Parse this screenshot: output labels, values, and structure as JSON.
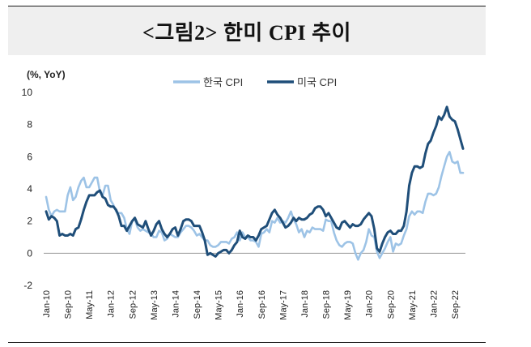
{
  "title": "<그림2> 한미 CPI 추이",
  "chart_data": {
    "type": "line",
    "ylabel": "(%, YoY)",
    "ylim": [
      -2,
      10
    ],
    "yticks": [
      -2,
      0,
      2,
      4,
      6,
      8,
      10
    ],
    "xtick_labels": [
      "Jan-10",
      "Sep-10",
      "May-11",
      "Jan-12",
      "Sep-12",
      "May-13",
      "Jan-14",
      "Sep-14",
      "May-15",
      "Jan-16",
      "Sep-16",
      "May-17",
      "Jan-18",
      "Sep-18",
      "May-19",
      "Jan-20",
      "Sep-20",
      "May-21",
      "Jan-22",
      "Sep-22"
    ],
    "legend_position": "top-center",
    "grid": false,
    "x_start": "2010-01",
    "x_end": "2022-12",
    "series": [
      {
        "name": "한국 CPI",
        "color": "#9dc3e6",
        "values": [
          3.5,
          2.7,
          2.3,
          2.6,
          2.7,
          2.6,
          2.6,
          2.6,
          3.6,
          4.1,
          3.3,
          3.5,
          4.1,
          4.5,
          4.7,
          4.1,
          4.1,
          4.4,
          4.7,
          4.7,
          3.8,
          3.6,
          4.2,
          4.2,
          3.3,
          3.0,
          2.6,
          2.5,
          2.5,
          2.2,
          1.5,
          1.2,
          2.0,
          2.1,
          1.6,
          1.4,
          1.5,
          1.4,
          1.3,
          1.2,
          1.0,
          1.0,
          1.4,
          1.3,
          0.8,
          0.9,
          1.2,
          1.1,
          1.0,
          1.0,
          1.3,
          1.5,
          1.7,
          1.7,
          1.6,
          1.4,
          1.1,
          1.2,
          1.0,
          0.8,
          0.8,
          0.5,
          0.4,
          0.4,
          0.5,
          0.7,
          0.7,
          0.7,
          0.6,
          0.9,
          1.0,
          1.3,
          0.8,
          1.3,
          1.0,
          1.0,
          0.8,
          0.8,
          0.7,
          0.4,
          1.2,
          1.3,
          1.5,
          1.3,
          2.0,
          1.9,
          2.2,
          1.9,
          2.0,
          1.9,
          2.2,
          2.6,
          2.1,
          1.8,
          1.3,
          1.5,
          1.0,
          1.4,
          1.3,
          1.6,
          1.5,
          1.5,
          1.5,
          1.4,
          2.1,
          2.0,
          2.0,
          1.3,
          0.8,
          0.5,
          0.4,
          0.6,
          0.7,
          0.7,
          0.6,
          0.0,
          -0.4,
          0.0,
          0.2,
          0.7,
          1.5,
          1.1,
          1.0,
          0.1,
          -0.3,
          0.0,
          0.3,
          0.7,
          1.0,
          0.1,
          0.6,
          0.5,
          0.6,
          1.1,
          1.5,
          2.3,
          2.6,
          2.4,
          2.6,
          2.6,
          2.5,
          3.2,
          3.7,
          3.7,
          3.6,
          3.7,
          4.1,
          4.8,
          5.4,
          6.0,
          6.3,
          5.7,
          5.6,
          5.7,
          5.0,
          5.0
        ]
      },
      {
        "name": "미국 CPI",
        "color": "#1f4e79",
        "values": [
          2.6,
          2.1,
          2.3,
          2.2,
          2.0,
          1.1,
          1.2,
          1.1,
          1.1,
          1.2,
          1.1,
          1.5,
          1.6,
          2.1,
          2.7,
          3.2,
          3.6,
          3.6,
          3.6,
          3.8,
          3.9,
          3.5,
          3.4,
          3.0,
          2.9,
          2.9,
          2.7,
          2.3,
          1.7,
          1.7,
          1.4,
          1.7,
          2.0,
          2.2,
          1.8,
          1.7,
          1.6,
          2.0,
          1.5,
          1.1,
          1.4,
          1.8,
          2.0,
          1.5,
          1.2,
          1.0,
          1.2,
          1.5,
          1.6,
          1.1,
          1.5,
          2.0,
          2.1,
          2.1,
          2.0,
          1.7,
          1.7,
          1.7,
          1.3,
          0.8,
          -0.1,
          0.0,
          -0.1,
          -0.2,
          0.0,
          0.1,
          0.2,
          0.2,
          0.0,
          0.2,
          0.5,
          0.7,
          1.4,
          1.0,
          0.9,
          1.1,
          1.0,
          1.0,
          0.8,
          1.1,
          1.5,
          1.6,
          1.7,
          2.1,
          2.5,
          2.7,
          2.4,
          2.2,
          1.9,
          1.6,
          1.7,
          1.9,
          2.2,
          2.0,
          2.2,
          2.1,
          2.1,
          2.2,
          2.4,
          2.5,
          2.8,
          2.9,
          2.9,
          2.7,
          2.3,
          2.5,
          2.2,
          1.9,
          1.6,
          1.5,
          1.9,
          2.0,
          1.8,
          1.6,
          1.8,
          1.7,
          1.7,
          1.8,
          2.1,
          2.3,
          2.5,
          2.3,
          1.5,
          0.3,
          0.1,
          0.6,
          1.0,
          1.3,
          1.4,
          1.2,
          1.2,
          1.4,
          1.4,
          1.7,
          2.6,
          4.2,
          5.0,
          5.4,
          5.4,
          5.3,
          5.4,
          6.2,
          6.8,
          7.0,
          7.5,
          7.9,
          8.5,
          8.3,
          8.6,
          9.1,
          8.5,
          8.3,
          8.2,
          7.7,
          7.1,
          6.5
        ]
      }
    ]
  }
}
